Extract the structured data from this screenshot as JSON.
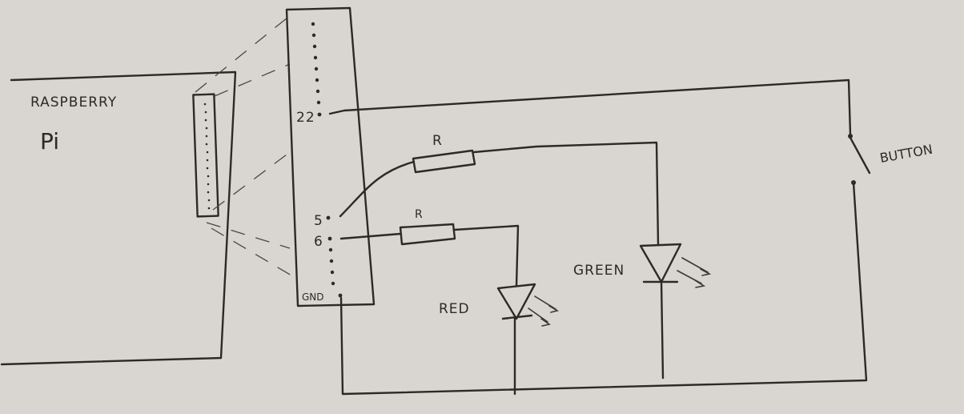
{
  "board": {
    "title_line1": "RASPBERRY",
    "title_line2": "Pi"
  },
  "header": {
    "pin_22": "22",
    "pin_5": "5",
    "pin_6": "6",
    "pin_gnd": "GND"
  },
  "components": {
    "resistor_top": "R",
    "resistor_bottom": "R",
    "led_red": "RED",
    "led_green": "GREEN",
    "button": "BUTTON"
  },
  "colors": {
    "paper": "#d9d6d1",
    "ink": "#2c2a29"
  }
}
